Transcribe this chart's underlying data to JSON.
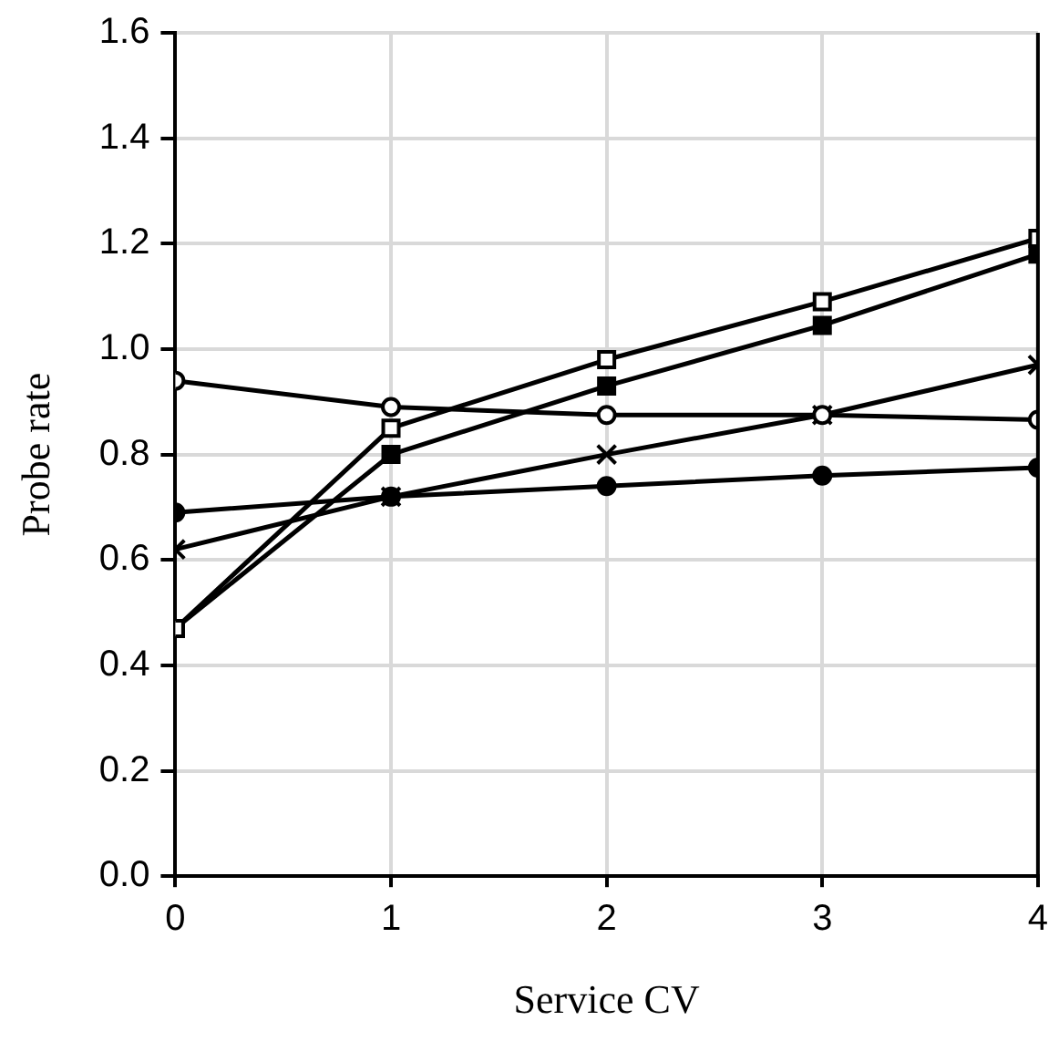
{
  "chart_data": {
    "type": "line",
    "xlabel": "Service CV",
    "ylabel": "Probe rate",
    "x": [
      0,
      1,
      2,
      3,
      4
    ],
    "xlim": [
      0,
      4
    ],
    "xticks": [
      0,
      1,
      2,
      3,
      4
    ],
    "ylim": [
      0,
      1.6
    ],
    "yticks": [
      {
        "value": 0,
        "label": "0.0"
      },
      0.2,
      0.4,
      0.6,
      0.8,
      {
        "value": 1,
        "label": "1.0"
      },
      1.2,
      1.4,
      1.6
    ],
    "grid": true,
    "legend": false,
    "line_style": "solid",
    "series": [
      {
        "color": "#000000",
        "marker": "square",
        "values": [
          0.47,
          0.85,
          0.98,
          1.09,
          1.21
        ]
      },
      {
        "color": "#000000",
        "marker": "square",
        "values": [
          0.47,
          0.8,
          0.93,
          1.045,
          1.18
        ]
      },
      {
        "color": "#000000",
        "marker": "circle",
        "values": [
          0.94,
          0.89,
          0.875,
          0.875,
          0.866
        ]
      },
      {
        "color": "#000000",
        "marker": "circle",
        "values": [
          0.69,
          0.72,
          0.74,
          0.76,
          0.775
        ]
      },
      {
        "color": "#000000",
        "marker": "cross",
        "values": [
          0.62,
          0.72,
          0.8,
          0.875,
          0.97
        ]
      }
    ]
  }
}
